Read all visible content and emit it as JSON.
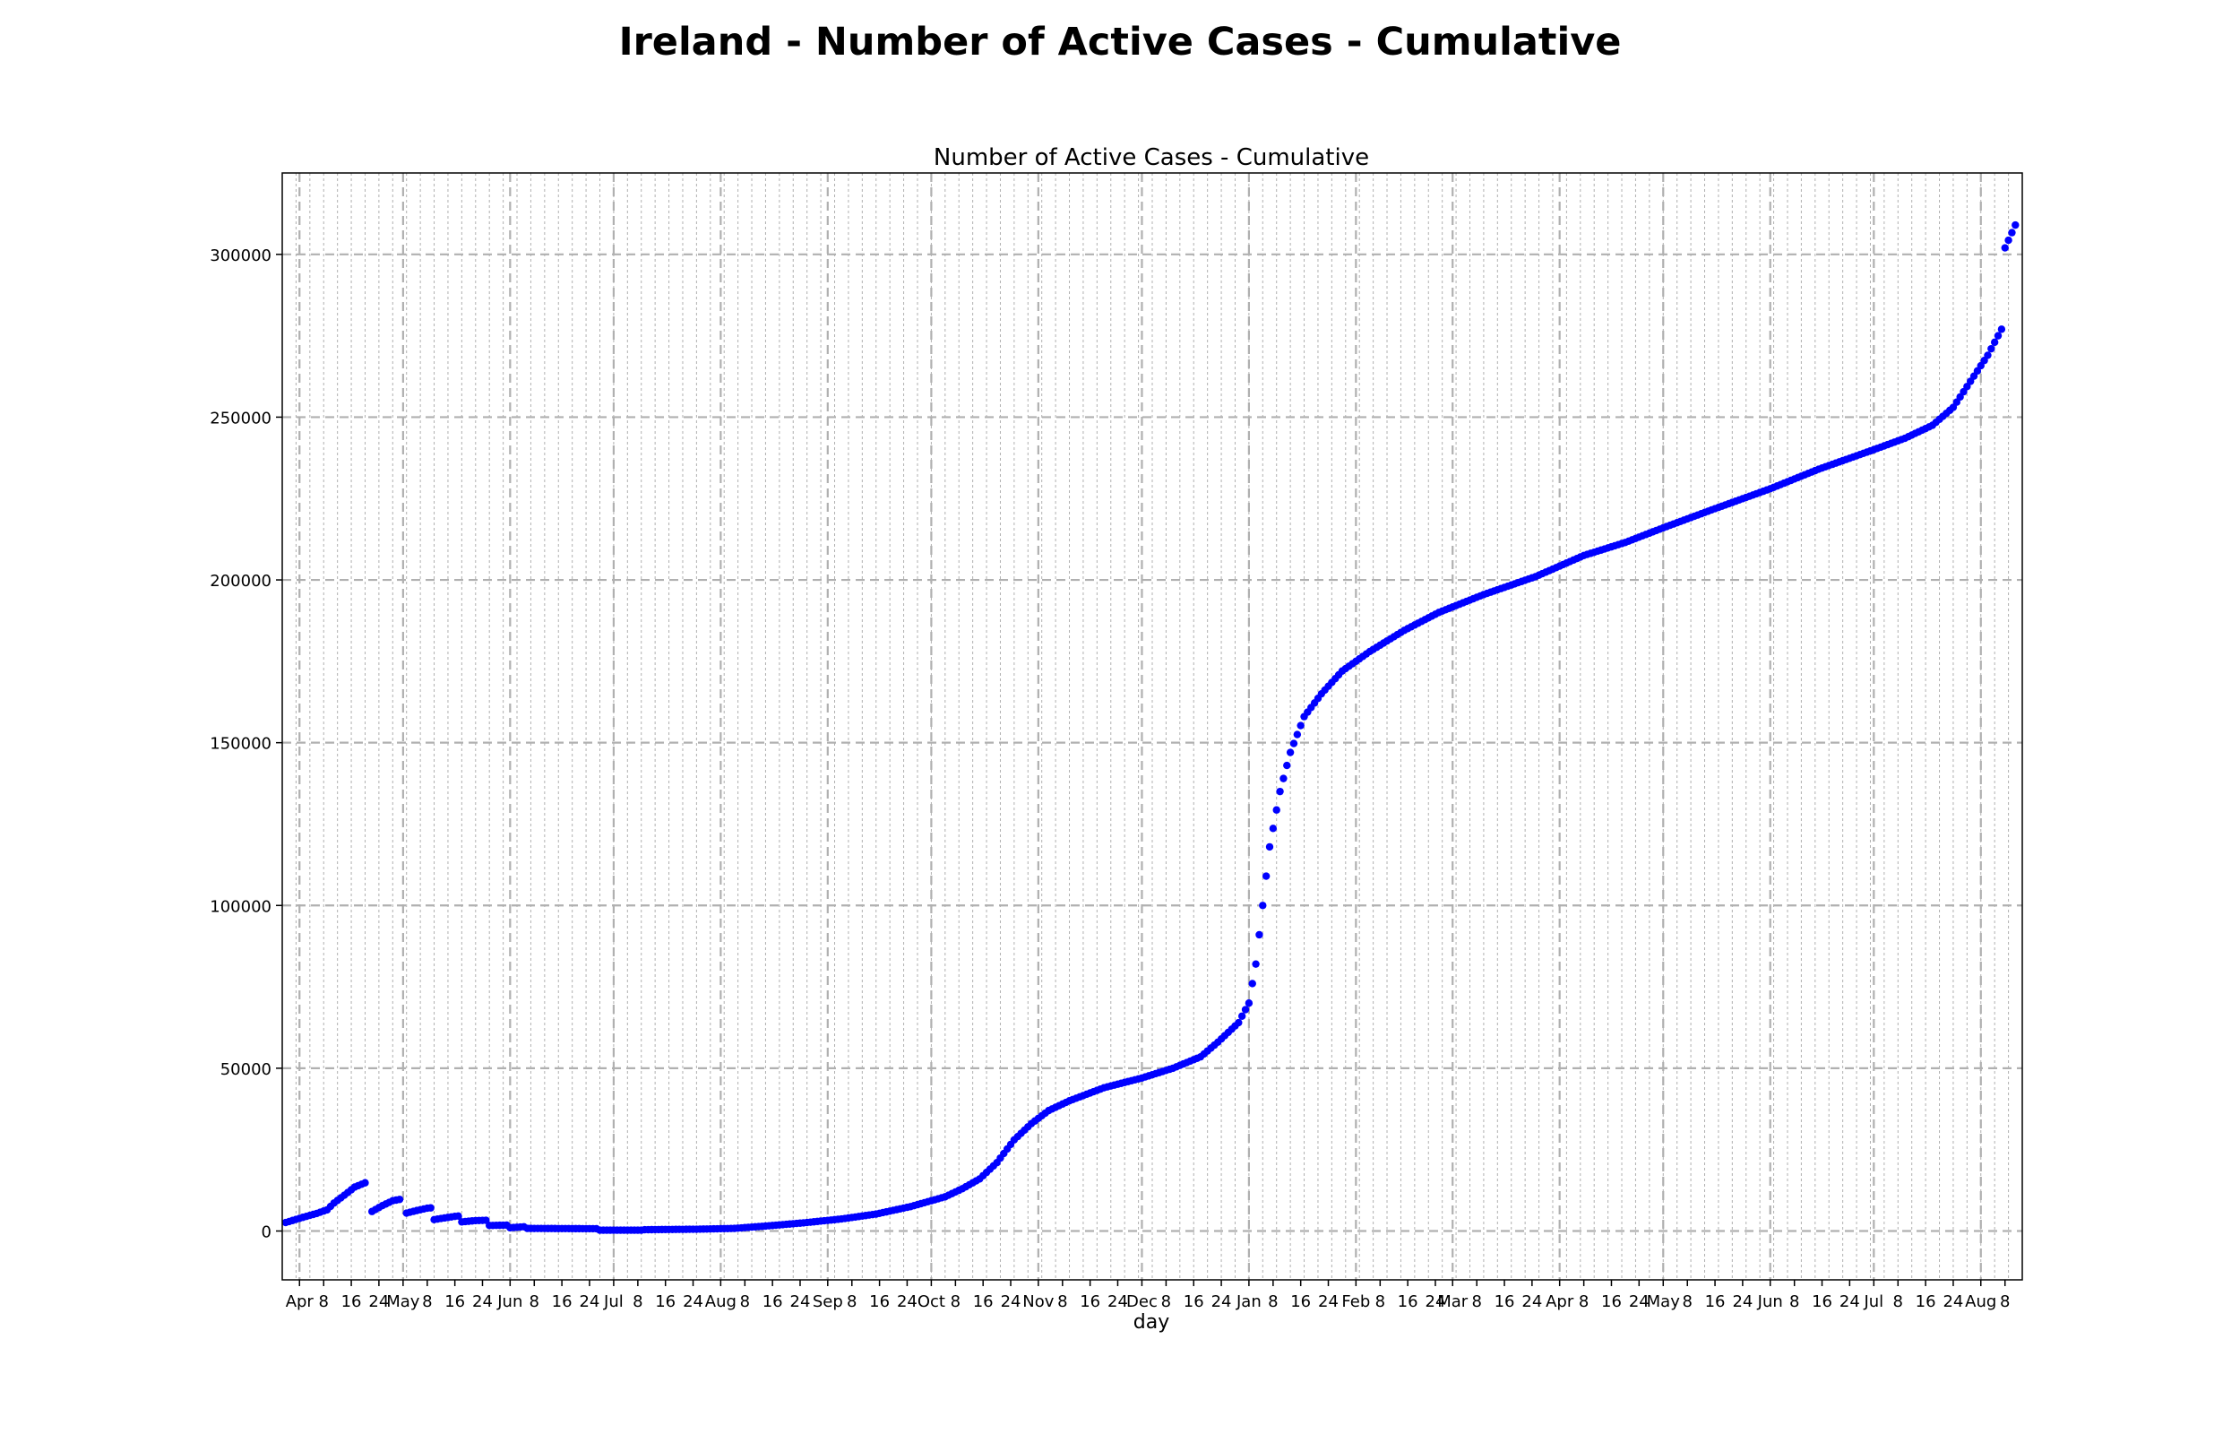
{
  "figure": {
    "suptitle": "Ireland - Number of Active Cases - Cumulative"
  },
  "chart_data": {
    "type": "scatter",
    "title": "Number of Active Cases - Cumulative",
    "xlabel": "day",
    "ylabel": "",
    "x_range": [
      "2020-03-27",
      "2021-08-13"
    ],
    "ylim": [
      -15000,
      325000
    ],
    "grid": true,
    "legend": "none",
    "marker_color": "#0000ff",
    "y_ticks": [
      0,
      50000,
      100000,
      150000,
      200000,
      250000,
      300000
    ],
    "y_tick_labels": [
      "0",
      "50000",
      "100000",
      "150000",
      "200000",
      "250000",
      "300000"
    ],
    "x_tick_labels": [
      {
        "date": "2020-04-01",
        "label": "Apr"
      },
      {
        "date": "2020-04-08",
        "label": "8"
      },
      {
        "date": "2020-04-16",
        "label": "16"
      },
      {
        "date": "2020-04-24",
        "label": "24"
      },
      {
        "date": "2020-05-01",
        "label": "May"
      },
      {
        "date": "2020-05-08",
        "label": "8"
      },
      {
        "date": "2020-05-16",
        "label": "16"
      },
      {
        "date": "2020-05-24",
        "label": "24"
      },
      {
        "date": "2020-06-01",
        "label": "Jun"
      },
      {
        "date": "2020-06-08",
        "label": "8"
      },
      {
        "date": "2020-06-16",
        "label": "16"
      },
      {
        "date": "2020-06-24",
        "label": "24"
      },
      {
        "date": "2020-07-01",
        "label": "Jul"
      },
      {
        "date": "2020-07-08",
        "label": "8"
      },
      {
        "date": "2020-07-16",
        "label": "16"
      },
      {
        "date": "2020-07-24",
        "label": "24"
      },
      {
        "date": "2020-08-01",
        "label": "Aug"
      },
      {
        "date": "2020-08-08",
        "label": "8"
      },
      {
        "date": "2020-08-16",
        "label": "16"
      },
      {
        "date": "2020-08-24",
        "label": "24"
      },
      {
        "date": "2020-09-01",
        "label": "Sep"
      },
      {
        "date": "2020-09-08",
        "label": "8"
      },
      {
        "date": "2020-09-16",
        "label": "16"
      },
      {
        "date": "2020-09-24",
        "label": "24"
      },
      {
        "date": "2020-10-01",
        "label": "Oct"
      },
      {
        "date": "2020-10-08",
        "label": "8"
      },
      {
        "date": "2020-10-16",
        "label": "16"
      },
      {
        "date": "2020-10-24",
        "label": "24"
      },
      {
        "date": "2020-11-01",
        "label": "Nov"
      },
      {
        "date": "2020-11-08",
        "label": "8"
      },
      {
        "date": "2020-11-16",
        "label": "16"
      },
      {
        "date": "2020-11-24",
        "label": "24"
      },
      {
        "date": "2020-12-01",
        "label": "Dec"
      },
      {
        "date": "2020-12-08",
        "label": "8"
      },
      {
        "date": "2020-12-16",
        "label": "16"
      },
      {
        "date": "2020-12-24",
        "label": "24"
      },
      {
        "date": "2021-01-01",
        "label": "Jan"
      },
      {
        "date": "2021-01-08",
        "label": "8"
      },
      {
        "date": "2021-01-16",
        "label": "16"
      },
      {
        "date": "2021-01-24",
        "label": "24"
      },
      {
        "date": "2021-02-01",
        "label": "Feb"
      },
      {
        "date": "2021-02-08",
        "label": "8"
      },
      {
        "date": "2021-02-16",
        "label": "16"
      },
      {
        "date": "2021-02-24",
        "label": "24"
      },
      {
        "date": "2021-03-01",
        "label": "Mar"
      },
      {
        "date": "2021-03-08",
        "label": "8"
      },
      {
        "date": "2021-03-16",
        "label": "16"
      },
      {
        "date": "2021-03-24",
        "label": "24"
      },
      {
        "date": "2021-04-01",
        "label": "Apr"
      },
      {
        "date": "2021-04-08",
        "label": "8"
      },
      {
        "date": "2021-04-16",
        "label": "16"
      },
      {
        "date": "2021-04-24",
        "label": "24"
      },
      {
        "date": "2021-05-01",
        "label": "May"
      },
      {
        "date": "2021-05-08",
        "label": "8"
      },
      {
        "date": "2021-05-16",
        "label": "16"
      },
      {
        "date": "2021-05-24",
        "label": "24"
      },
      {
        "date": "2021-06-01",
        "label": "Jun"
      },
      {
        "date": "2021-06-08",
        "label": "8"
      },
      {
        "date": "2021-06-16",
        "label": "16"
      },
      {
        "date": "2021-06-24",
        "label": "24"
      },
      {
        "date": "2021-07-01",
        "label": "Jul"
      },
      {
        "date": "2021-07-08",
        "label": "8"
      },
      {
        "date": "2021-07-16",
        "label": "16"
      },
      {
        "date": "2021-07-24",
        "label": "24"
      },
      {
        "date": "2021-08-01",
        "label": "Aug"
      },
      {
        "date": "2021-08-08",
        "label": "8"
      }
    ],
    "minor_x_grid_step_days": 4,
    "series": [
      {
        "segments": [
          [
            [
              "2020-03-28",
              2600
            ],
            [
              "2020-04-02",
              4200
            ],
            [
              "2020-04-06",
              5400
            ],
            [
              "2020-04-09",
              6500
            ],
            [
              "2020-04-11",
              8600
            ],
            [
              "2020-04-14",
              11000
            ],
            [
              "2020-04-17",
              13500
            ],
            [
              "2020-04-20",
              14800
            ]
          ],
          [
            [
              "2020-04-22",
              6000
            ],
            [
              "2020-04-25",
              7800
            ],
            [
              "2020-04-28",
              9300
            ],
            [
              "2020-04-30",
              9700
            ]
          ],
          [
            [
              "2020-05-02",
              5500
            ],
            [
              "2020-05-05",
              6300
            ],
            [
              "2020-05-08",
              7000
            ],
            [
              "2020-05-09",
              7100
            ]
          ],
          [
            [
              "2020-05-10",
              3500
            ],
            [
              "2020-05-13",
              4000
            ],
            [
              "2020-05-16",
              4500
            ],
            [
              "2020-05-17",
              4600
            ]
          ],
          [
            [
              "2020-05-18",
              2800
            ],
            [
              "2020-05-22",
              3200
            ],
            [
              "2020-05-25",
              3300
            ]
          ],
          [
            [
              "2020-05-26",
              1700
            ],
            [
              "2020-05-31",
              1800
            ]
          ],
          [
            [
              "2020-06-01",
              1000
            ],
            [
              "2020-06-05",
              1300
            ]
          ],
          [
            [
              "2020-06-06",
              800
            ],
            [
              "2020-06-26",
              700
            ]
          ],
          [
            [
              "2020-06-27",
              250
            ],
            [
              "2020-07-09",
              250
            ],
            [
              "2020-07-10",
              400
            ],
            [
              "2020-07-25",
              550
            ],
            [
              "2020-08-05",
              800
            ],
            [
              "2020-08-15",
              1600
            ],
            [
              "2020-08-25",
              2500
            ],
            [
              "2020-09-05",
              3700
            ],
            [
              "2020-09-15",
              5200
            ],
            [
              "2020-09-25",
              7500
            ],
            [
              "2020-10-05",
              10500
            ],
            [
              "2020-10-10",
              13000
            ],
            [
              "2020-10-15",
              16000
            ],
            [
              "2020-10-20",
              21000
            ],
            [
              "2020-10-25",
              28000
            ],
            [
              "2020-10-30",
              33000
            ],
            [
              "2020-11-04",
              37000
            ],
            [
              "2020-11-10",
              40000
            ],
            [
              "2020-11-20",
              44000
            ],
            [
              "2020-12-01",
              47000
            ],
            [
              "2020-12-10",
              50000
            ],
            [
              "2020-12-18",
              53500
            ],
            [
              "2020-12-23",
              58000
            ],
            [
              "2020-12-29",
              64000
            ],
            [
              "2021-01-01",
              70000
            ],
            [
              "2021-01-03",
              82000
            ],
            [
              "2021-01-05",
              100000
            ],
            [
              "2021-01-07",
              118000
            ],
            [
              "2021-01-10",
              135000
            ],
            [
              "2021-01-13",
              147000
            ],
            [
              "2021-01-17",
              158000
            ],
            [
              "2021-01-22",
              165000
            ],
            [
              "2021-01-28",
              172000
            ],
            [
              "2021-02-05",
              178000
            ],
            [
              "2021-02-15",
              184500
            ],
            [
              "2021-02-25",
              190000
            ],
            [
              "2021-03-10",
              195500
            ],
            [
              "2021-03-25",
              201000
            ],
            [
              "2021-04-08",
              207500
            ],
            [
              "2021-04-20",
              211500
            ],
            [
              "2021-05-01",
              216000
            ],
            [
              "2021-05-15",
              221500
            ],
            [
              "2021-06-01",
              228000
            ],
            [
              "2021-06-15",
              234000
            ],
            [
              "2021-07-01",
              240000
            ],
            [
              "2021-07-10",
              243500
            ],
            [
              "2021-07-18",
              247500
            ],
            [
              "2021-07-24",
              253000
            ],
            [
              "2021-07-29",
              261000
            ],
            [
              "2021-08-03",
              269000
            ],
            [
              "2021-08-07",
              277000
            ]
          ],
          [
            [
              "2021-08-08",
              302000
            ],
            [
              "2021-08-11",
              309000
            ]
          ]
        ]
      }
    ]
  }
}
